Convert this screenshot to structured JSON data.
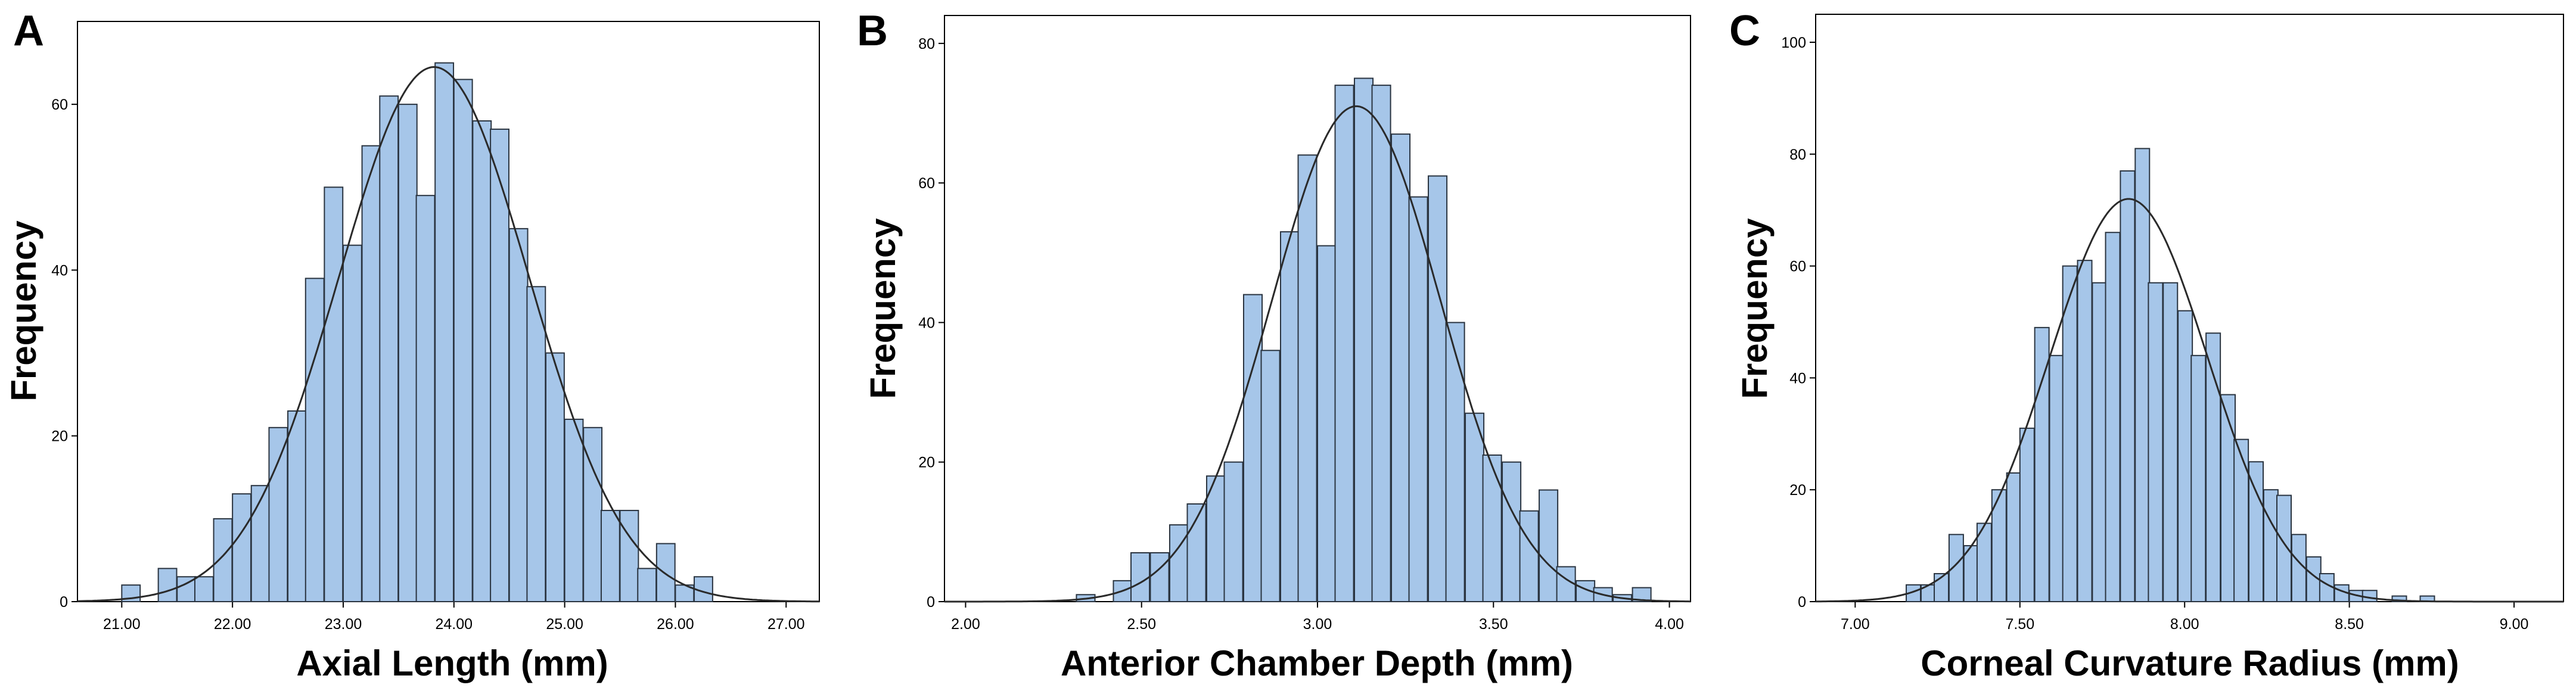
{
  "chart_data": [
    {
      "panel": "A",
      "type": "bar",
      "subtype": "histogram",
      "xlabel": "Axial Length (mm)",
      "ylabel": "Frequency",
      "xlim": [
        20.6,
        27.3
      ],
      "ylim": [
        0,
        70
      ],
      "xticks": [
        21.0,
        22.0,
        23.0,
        24.0,
        25.0,
        26.0,
        27.0
      ],
      "xtick_labels": [
        "21.00",
        "22.00",
        "23.00",
        "24.00",
        "25.00",
        "26.00",
        "27.00"
      ],
      "yticks": [
        0,
        20,
        40,
        60
      ],
      "bin_width": 0.166,
      "bins": [
        {
          "x0": 21.0,
          "count": 2
        },
        {
          "x0": 21.33,
          "count": 4
        },
        {
          "x0": 21.5,
          "count": 3
        },
        {
          "x0": 21.66,
          "count": 3
        },
        {
          "x0": 21.83,
          "count": 10
        },
        {
          "x0": 22.0,
          "count": 13
        },
        {
          "x0": 22.17,
          "count": 14
        },
        {
          "x0": 22.33,
          "count": 21
        },
        {
          "x0": 22.5,
          "count": 23
        },
        {
          "x0": 22.66,
          "count": 39
        },
        {
          "x0": 22.83,
          "count": 50
        },
        {
          "x0": 23.0,
          "count": 43
        },
        {
          "x0": 23.17,
          "count": 55
        },
        {
          "x0": 23.33,
          "count": 61
        },
        {
          "x0": 23.5,
          "count": 60
        },
        {
          "x0": 23.66,
          "count": 49
        },
        {
          "x0": 23.83,
          "count": 65
        },
        {
          "x0": 24.0,
          "count": 63
        },
        {
          "x0": 24.17,
          "count": 58
        },
        {
          "x0": 24.33,
          "count": 57
        },
        {
          "x0": 24.5,
          "count": 45
        },
        {
          "x0": 24.66,
          "count": 38
        },
        {
          "x0": 24.83,
          "count": 30
        },
        {
          "x0": 25.0,
          "count": 22
        },
        {
          "x0": 25.17,
          "count": 21
        },
        {
          "x0": 25.33,
          "count": 11
        },
        {
          "x0": 25.5,
          "count": 11
        },
        {
          "x0": 25.66,
          "count": 4
        },
        {
          "x0": 25.83,
          "count": 7
        },
        {
          "x0": 26.0,
          "count": 2
        },
        {
          "x0": 26.17,
          "count": 3
        }
      ],
      "normal_curve": {
        "mean": 23.82,
        "sd": 0.86,
        "peak": 64.5
      },
      "colors": {
        "bar_fill": "#a6c6e9",
        "bar_stroke": "#2a3440",
        "curve": "#2a2a2a"
      }
    },
    {
      "panel": "B",
      "type": "bar",
      "subtype": "histogram",
      "xlabel": "Anterior Chamber Depth (mm)",
      "ylabel": "Frequency",
      "xlim": [
        1.94,
        4.06
      ],
      "ylim": [
        0,
        84
      ],
      "xticks": [
        2.0,
        2.5,
        3.0,
        3.5,
        4.0
      ],
      "xtick_labels": [
        "2.00",
        "2.50",
        "3.00",
        "3.50",
        "4.00"
      ],
      "yticks": [
        0,
        20,
        40,
        60,
        80
      ],
      "bin_width": 0.0526,
      "bins": [
        {
          "x0": 2.315,
          "count": 1
        },
        {
          "x0": 2.42,
          "count": 3
        },
        {
          "x0": 2.47,
          "count": 7
        },
        {
          "x0": 2.525,
          "count": 7
        },
        {
          "x0": 2.58,
          "count": 11
        },
        {
          "x0": 2.63,
          "count": 14
        },
        {
          "x0": 2.685,
          "count": 18
        },
        {
          "x0": 2.735,
          "count": 20
        },
        {
          "x0": 2.79,
          "count": 44
        },
        {
          "x0": 2.84,
          "count": 36
        },
        {
          "x0": 2.895,
          "count": 53
        },
        {
          "x0": 2.945,
          "count": 64
        },
        {
          "x0": 3.0,
          "count": 51
        },
        {
          "x0": 3.05,
          "count": 74
        },
        {
          "x0": 3.105,
          "count": 75
        },
        {
          "x0": 3.155,
          "count": 74
        },
        {
          "x0": 3.21,
          "count": 67
        },
        {
          "x0": 3.26,
          "count": 58
        },
        {
          "x0": 3.315,
          "count": 61
        },
        {
          "x0": 3.365,
          "count": 40
        },
        {
          "x0": 3.42,
          "count": 27
        },
        {
          "x0": 3.47,
          "count": 21
        },
        {
          "x0": 3.525,
          "count": 20
        },
        {
          "x0": 3.575,
          "count": 13
        },
        {
          "x0": 3.63,
          "count": 16
        },
        {
          "x0": 3.68,
          "count": 5
        },
        {
          "x0": 3.735,
          "count": 3
        },
        {
          "x0": 3.785,
          "count": 2
        },
        {
          "x0": 3.84,
          "count": 1
        },
        {
          "x0": 3.895,
          "count": 2
        }
      ],
      "normal_curve": {
        "mean": 3.11,
        "sd": 0.24,
        "peak": 71
      },
      "colors": {
        "bar_fill": "#a6c6e9",
        "bar_stroke": "#2a3440",
        "curve": "#2a2a2a"
      }
    },
    {
      "panel": "C",
      "type": "bar",
      "subtype": "histogram",
      "xlabel": "Corneal Curvature Radius (mm)",
      "ylabel": "Frequency",
      "xlim": [
        6.88,
        9.15
      ],
      "ylim": [
        0,
        105
      ],
      "xticks": [
        7.0,
        7.5,
        8.0,
        8.5,
        9.0
      ],
      "xtick_labels": [
        "7.00",
        "7.50",
        "8.00",
        "8.50",
        "9.00"
      ],
      "yticks": [
        0,
        20,
        40,
        60,
        80,
        100
      ],
      "bin_width": 0.0434,
      "bins": [
        {
          "x0": 7.155,
          "count": 3
        },
        {
          "x0": 7.2,
          "count": 3
        },
        {
          "x0": 7.24,
          "count": 5
        },
        {
          "x0": 7.285,
          "count": 12
        },
        {
          "x0": 7.33,
          "count": 10
        },
        {
          "x0": 7.37,
          "count": 14
        },
        {
          "x0": 7.415,
          "count": 20
        },
        {
          "x0": 7.46,
          "count": 23
        },
        {
          "x0": 7.5,
          "count": 31
        },
        {
          "x0": 7.545,
          "count": 49
        },
        {
          "x0": 7.59,
          "count": 44
        },
        {
          "x0": 7.63,
          "count": 60
        },
        {
          "x0": 7.675,
          "count": 61
        },
        {
          "x0": 7.72,
          "count": 57
        },
        {
          "x0": 7.76,
          "count": 66
        },
        {
          "x0": 7.805,
          "count": 77
        },
        {
          "x0": 7.85,
          "count": 81
        },
        {
          "x0": 7.89,
          "count": 57
        },
        {
          "x0": 7.935,
          "count": 57
        },
        {
          "x0": 7.98,
          "count": 52
        },
        {
          "x0": 8.02,
          "count": 44
        },
        {
          "x0": 8.065,
          "count": 48
        },
        {
          "x0": 8.11,
          "count": 37
        },
        {
          "x0": 8.15,
          "count": 29
        },
        {
          "x0": 8.195,
          "count": 25
        },
        {
          "x0": 8.24,
          "count": 20
        },
        {
          "x0": 8.28,
          "count": 19
        },
        {
          "x0": 8.325,
          "count": 12
        },
        {
          "x0": 8.37,
          "count": 8
        },
        {
          "x0": 8.41,
          "count": 5
        },
        {
          "x0": 8.455,
          "count": 3
        },
        {
          "x0": 8.5,
          "count": 2
        },
        {
          "x0": 8.54,
          "count": 2
        },
        {
          "x0": 8.63,
          "count": 1
        },
        {
          "x0": 8.715,
          "count": 1
        }
      ],
      "normal_curve": {
        "mean": 7.83,
        "sd": 0.24,
        "peak": 72
      },
      "colors": {
        "bar_fill": "#a6c6e9",
        "bar_stroke": "#2a3440",
        "curve": "#2a2a2a"
      }
    }
  ]
}
